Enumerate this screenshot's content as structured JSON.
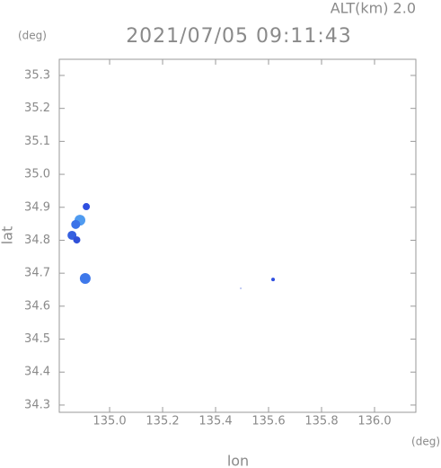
{
  "chart_data": {
    "type": "scatter",
    "title": "2021/07/05 09:11:43",
    "altitude_label": "ALT(km) 2.0",
    "x_label": "lon",
    "y_label": "lat",
    "x_unit": "(deg)",
    "y_unit": "(deg)",
    "xlim": [
      134.81,
      136.156
    ],
    "ylim": [
      34.278,
      35.349
    ],
    "xticks": [
      {
        "value": 135.0,
        "label": "135.0"
      },
      135.2,
      135.4,
      135.6,
      135.8,
      {
        "value": 136.0,
        "label": "136.0"
      }
    ],
    "yticks": [
      34.3,
      34.4,
      34.5,
      34.6,
      34.7,
      34.8,
      34.9,
      {
        "value": 35.0,
        "label": "35.0"
      },
      35.1,
      35.2,
      35.3
    ],
    "x": [
      134.912,
      134.888,
      134.872,
      134.858,
      134.876,
      134.908,
      135.617,
      135.495
    ],
    "y": [
      34.902,
      34.861,
      34.848,
      34.815,
      34.801,
      34.684,
      34.681,
      34.654
    ],
    "sizes": [
      4,
      6,
      5,
      5,
      4,
      6,
      2,
      0.6
    ],
    "colors": [
      "#2f4fe0",
      "#4f9bf0",
      "#3a72e8",
      "#3560e0",
      "#3050d8",
      "#3e78ea",
      "#2f4fe0",
      "#3050d8"
    ]
  }
}
